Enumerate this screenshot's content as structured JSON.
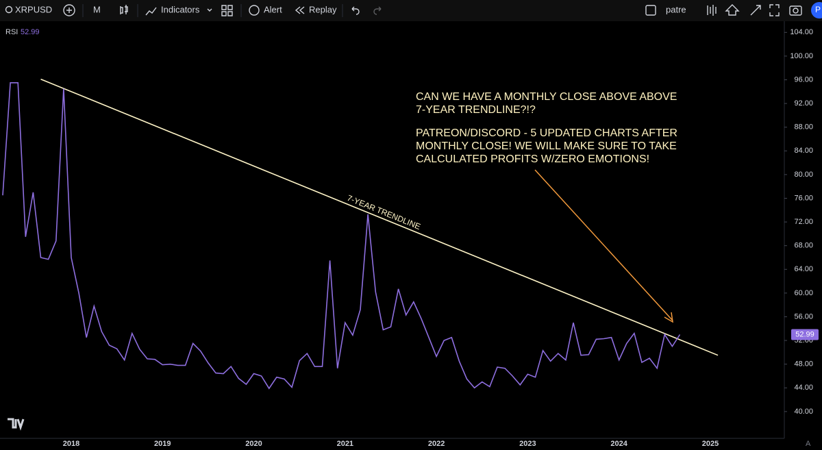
{
  "toolbar": {
    "symbol": "XRPUSD",
    "interval": "M",
    "indicators": "Indicators",
    "alert": "Alert",
    "replay": "Replay",
    "search": "patre",
    "avatar": "P"
  },
  "auto_label": "A",
  "chart_data": {
    "type": "line",
    "indicator": "RSI",
    "categories": [
      null,
      null,
      null,
      null,
      null,
      null,
      null,
      null,
      null,
      "2018",
      null,
      null,
      null,
      null,
      null,
      null,
      null,
      null,
      null,
      null,
      null,
      "2019",
      null,
      null,
      null,
      null,
      null,
      null,
      null,
      null,
      null,
      null,
      null,
      "2020",
      null,
      null,
      null,
      null,
      null,
      null,
      null,
      null,
      null,
      null,
      null,
      "2021",
      null,
      null,
      null,
      null,
      null,
      null,
      null,
      null,
      null,
      null,
      null,
      "2022",
      null,
      null,
      null,
      null,
      null,
      null,
      null,
      null,
      null,
      null,
      null,
      "2023",
      null,
      null,
      null,
      null,
      null,
      null,
      null,
      null,
      null,
      null,
      null,
      "2024",
      null,
      null,
      null,
      null,
      null,
      null,
      null,
      null,
      null,
      null,
      null,
      "2025"
    ],
    "series": [
      {
        "name": "RSI",
        "color": "#8e6fe0",
        "values": [
          76.5,
          95.5,
          95.5,
          69.5,
          77,
          66,
          65.7,
          68.8,
          94.5,
          66,
          60,
          52.5,
          57.8,
          53.5,
          51.2,
          50.6,
          48.7,
          53.2,
          50.5,
          48.9,
          48.8,
          47.9,
          48.0,
          47.8,
          47.8,
          51.5,
          50.2,
          48.2,
          46.5,
          46.4,
          47.6,
          45.6,
          44.6,
          46.4,
          46.0,
          43.9,
          45.8,
          45.5,
          44.1,
          48.6,
          49.8,
          47.6,
          47.6,
          65.5,
          47.3,
          55,
          52.9,
          57.2,
          73.3,
          60.2,
          53.8,
          54.3,
          60.7,
          56.3,
          58.5,
          55.7,
          52.5,
          49.3,
          52,
          52.5,
          48.5,
          45.5,
          44,
          45,
          44.2,
          47.5,
          47.3,
          46,
          44.5,
          46.3,
          45.8,
          50.3,
          48.5,
          49.8,
          48.7,
          55,
          49.5,
          49.6,
          52.2,
          52.3,
          52.5,
          48.7,
          51.5,
          53.2,
          48.3,
          49,
          47.3,
          53,
          51,
          52.99,
          null,
          null,
          null,
          null
        ]
      }
    ],
    "ylim": [
      36.4,
      106
    ],
    "yticks": [
      {
        "value": 40,
        "label": "40.00"
      },
      {
        "value": 44,
        "label": "44.00"
      },
      {
        "value": 48,
        "label": "48.00"
      },
      {
        "value": 52,
        "label": "52.00"
      },
      {
        "value": 56,
        "label": "56.00"
      },
      {
        "value": 60,
        "label": "60.00"
      },
      {
        "value": 64,
        "label": "64.00"
      },
      {
        "value": 68,
        "label": "68.00"
      },
      {
        "value": 72,
        "label": "72.00"
      },
      {
        "value": 76,
        "label": "76.00"
      },
      {
        "value": 80,
        "label": "80.00"
      },
      {
        "value": 84,
        "label": "84.00"
      },
      {
        "value": 88,
        "label": "88.00"
      },
      {
        "value": 92,
        "label": "92.00"
      },
      {
        "value": 96,
        "label": "96.00"
      },
      {
        "value": 100,
        "label": "100.00"
      },
      {
        "value": 104,
        "label": "104.00"
      }
    ],
    "trendline": {
      "label": "7-YEAR TRENDLINE",
      "color": "#fff5c8",
      "x": [
        5,
        94
      ],
      "values": [
        96.1,
        49.5
      ]
    },
    "annotation": [
      [
        "CAN WE HAVE A MONTHLY CLOSE ABOVE ABOVE",
        "7-YEAR TRENDLINE?!?"
      ],
      [
        "PATREON/DISCORD - 5 UPDATED CHARTS AFTER",
        "MONTHLY CLOSE! WE WILL MAKE SURE TO TAKE",
        "CALCULATED PROFITS W/ZERO EMOTIONS!"
      ]
    ]
  }
}
